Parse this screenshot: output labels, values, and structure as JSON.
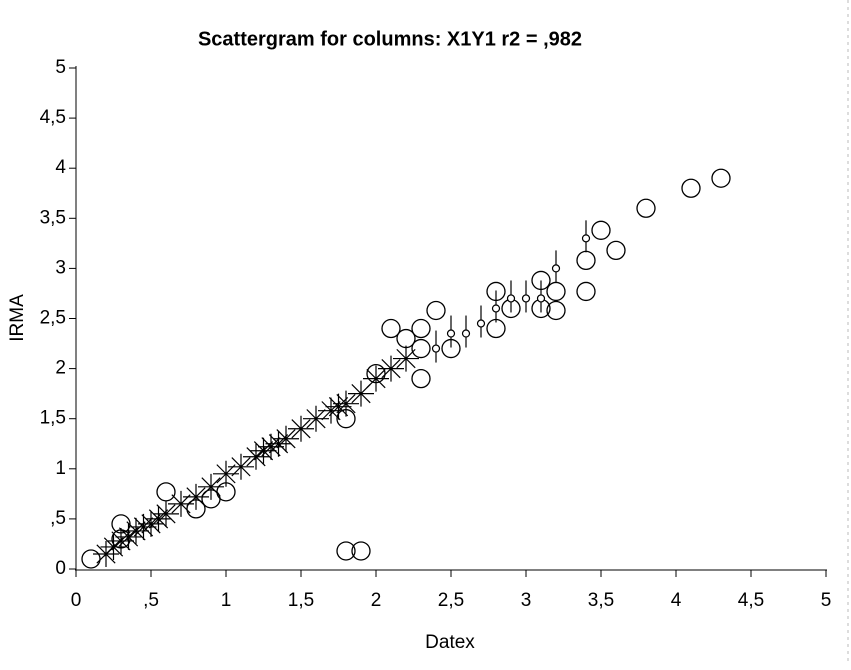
{
  "chart_data": {
    "type": "scatter",
    "title": "Scattergram for columns: X1Y1   r2 = ,982",
    "x_label": "Datex",
    "y_label": "IRMA",
    "xlim": [
      0,
      5
    ],
    "ylim": [
      0,
      5
    ],
    "xticks": [
      0,
      {
        "value": 0.5,
        "label": ",5"
      },
      1,
      {
        "value": 1.5,
        "label": "1,5"
      },
      2,
      {
        "value": 2.5,
        "label": "2,5"
      },
      3,
      {
        "value": 3.5,
        "label": "3,5"
      },
      4,
      {
        "value": 4.5,
        "label": "4,5"
      },
      5
    ],
    "yticks": [
      0,
      {
        "value": 0.5,
        "label": ",5"
      },
      1,
      {
        "value": 1.5,
        "label": "1,5"
      },
      2,
      {
        "value": 2.5,
        "label": "2,5"
      },
      3,
      {
        "value": 3.5,
        "label": "3,5"
      },
      4,
      {
        "value": 4.5,
        "label": "4,5"
      },
      5
    ],
    "grid": false,
    "series": [
      {
        "marker": "circle",
        "color": "#000000",
        "x": [
          0.1,
          0.3,
          0.3,
          0.6,
          0.8,
          0.9,
          1.0,
          1.8,
          1.9,
          1.8,
          2.0,
          2.1,
          2.2,
          2.3,
          2.3,
          2.3,
          2.4,
          2.5,
          2.8,
          2.8,
          2.9,
          3.1,
          3.1,
          3.2,
          3.2,
          3.4,
          3.4,
          3.5,
          3.6,
          3.8,
          4.1,
          4.3
        ],
        "values": [
          0.1,
          0.45,
          0.3,
          0.77,
          0.6,
          0.7,
          0.77,
          0.18,
          0.18,
          1.5,
          1.95,
          2.4,
          2.3,
          2.4,
          2.2,
          1.9,
          2.58,
          2.2,
          2.77,
          2.4,
          2.6,
          2.88,
          2.6,
          2.77,
          2.58,
          3.08,
          2.77,
          3.38,
          3.18,
          3.6,
          3.8,
          3.9
        ]
      },
      {
        "marker": "star",
        "color": "#000000",
        "x": [
          0.2,
          0.25,
          0.3,
          0.35,
          0.4,
          0.45,
          0.5,
          0.55,
          0.6,
          0.7,
          0.8,
          0.9,
          1.0,
          1.1,
          1.2,
          1.25,
          1.3,
          1.35,
          1.4,
          1.5,
          1.6,
          1.7,
          1.75,
          1.8,
          1.9,
          2.0,
          2.1,
          2.2
        ],
        "values": [
          0.15,
          0.22,
          0.28,
          0.32,
          0.38,
          0.42,
          0.45,
          0.5,
          0.55,
          0.65,
          0.72,
          0.82,
          0.95,
          1.02,
          1.12,
          1.18,
          1.22,
          1.25,
          1.3,
          1.4,
          1.5,
          1.58,
          1.62,
          1.65,
          1.75,
          1.9,
          2.0,
          2.1
        ]
      },
      {
        "marker": "dot",
        "color": "#000000",
        "x": [
          2.4,
          2.5,
          2.6,
          2.7,
          2.8,
          2.9,
          3.0,
          3.1,
          3.2,
          3.4
        ],
        "values": [
          2.2,
          2.35,
          2.35,
          2.45,
          2.6,
          2.7,
          2.7,
          2.7,
          3.0,
          3.3
        ]
      }
    ]
  }
}
